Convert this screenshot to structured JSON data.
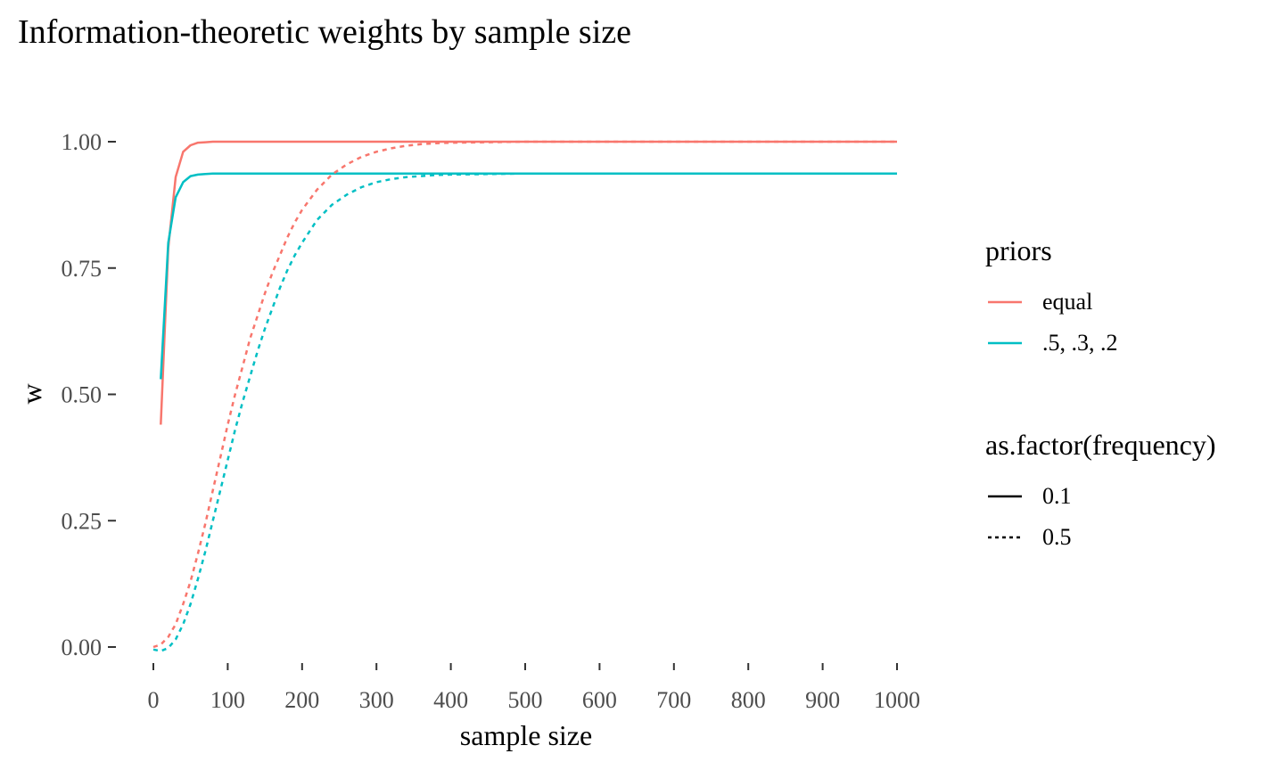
{
  "chart_data": {
    "type": "line",
    "title": "Information-theoretic weights by  sample size",
    "xlabel": "sample size",
    "ylabel": "w",
    "xlim": [
      0,
      1000
    ],
    "ylim": [
      0,
      1
    ],
    "xticks": [
      0,
      100,
      200,
      300,
      400,
      500,
      600,
      700,
      800,
      900,
      1000
    ],
    "yticks": [
      0,
      0.25,
      0.5,
      0.75,
      1
    ],
    "ytick_labels": [
      "0.00",
      "0.25",
      "0.50",
      "0.75",
      "1.00"
    ],
    "grid": false,
    "legend_position": "right",
    "legends": [
      {
        "title": "priors",
        "kind": "color",
        "entries": [
          {
            "label": "equal",
            "color": "#F8766D"
          },
          {
            "label": ".5, .3, .2",
            "color": "#00BFC4"
          }
        ]
      },
      {
        "title": "as.factor(frequency)",
        "kind": "linetype",
        "entries": [
          {
            "label": "0.1",
            "linetype": "solid"
          },
          {
            "label": "0.5",
            "linetype": "dotted"
          }
        ]
      }
    ],
    "series": [
      {
        "priors": "equal",
        "frequency": "0.1",
        "color": "#F8766D",
        "linetype": "solid",
        "x": [
          10,
          20,
          30,
          40,
          50,
          60,
          70,
          80,
          100,
          150,
          200,
          300,
          500,
          1000
        ],
        "y": [
          0.44,
          0.79,
          0.93,
          0.98,
          0.993,
          0.998,
          0.999,
          1.0,
          1.0,
          1.0,
          1.0,
          1.0,
          1.0,
          1.0
        ]
      },
      {
        "priors": ".5, .3, .2",
        "frequency": "0.1",
        "color": "#00BFC4",
        "linetype": "solid",
        "x": [
          10,
          20,
          30,
          40,
          50,
          60,
          70,
          80,
          100,
          150,
          200,
          300,
          500,
          1000
        ],
        "y": [
          0.53,
          0.8,
          0.89,
          0.92,
          0.932,
          0.935,
          0.936,
          0.937,
          0.937,
          0.937,
          0.937,
          0.937,
          0.937,
          0.937
        ]
      },
      {
        "priors": "equal",
        "frequency": "0.5",
        "color": "#F8766D",
        "linetype": "dotted",
        "x": [
          0,
          10,
          20,
          30,
          40,
          50,
          60,
          70,
          80,
          90,
          100,
          110,
          120,
          130,
          140,
          150,
          160,
          170,
          180,
          190,
          200,
          220,
          240,
          260,
          280,
          300,
          320,
          340,
          360,
          380,
          400,
          450,
          500,
          600,
          700,
          800,
          900,
          1000
        ],
        "y": [
          0.0,
          0.005,
          0.02,
          0.045,
          0.085,
          0.13,
          0.185,
          0.245,
          0.31,
          0.375,
          0.44,
          0.5,
          0.555,
          0.61,
          0.655,
          0.7,
          0.74,
          0.775,
          0.81,
          0.84,
          0.865,
          0.905,
          0.935,
          0.955,
          0.97,
          0.98,
          0.987,
          0.992,
          0.995,
          0.997,
          0.998,
          0.999,
          1.0,
          1.0,
          1.0,
          1.0,
          1.0,
          1.0
        ]
      },
      {
        "priors": ".5, .3, .2",
        "frequency": "0.5",
        "color": "#00BFC4",
        "linetype": "dotted",
        "x": [
          0,
          10,
          20,
          30,
          40,
          50,
          60,
          70,
          80,
          90,
          100,
          110,
          120,
          130,
          140,
          150,
          160,
          170,
          180,
          190,
          200,
          220,
          240,
          260,
          280,
          300,
          320,
          340,
          360,
          380,
          400,
          450,
          500,
          600,
          700,
          800,
          900,
          1000
        ],
        "y": [
          -0.005,
          -0.008,
          -0.002,
          0.015,
          0.045,
          0.085,
          0.135,
          0.19,
          0.25,
          0.31,
          0.37,
          0.43,
          0.485,
          0.535,
          0.585,
          0.63,
          0.67,
          0.71,
          0.745,
          0.775,
          0.8,
          0.845,
          0.875,
          0.895,
          0.91,
          0.92,
          0.926,
          0.93,
          0.932,
          0.934,
          0.935,
          0.936,
          0.937,
          0.937,
          0.937,
          0.937,
          0.937,
          0.937
        ]
      }
    ]
  }
}
